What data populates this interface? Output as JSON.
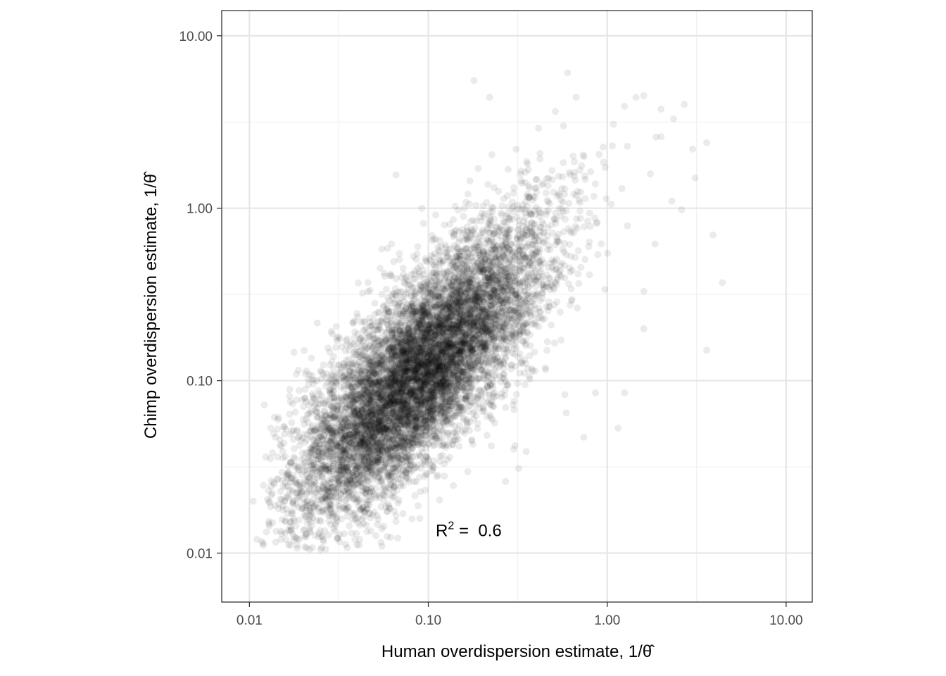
{
  "colors": {
    "point": "#000000",
    "grid_major": "#e6e6e6",
    "grid_minor": "#f0f0f0",
    "panel_border": "#333333",
    "tick_text": "#4d4d4d"
  },
  "chart_data": {
    "type": "scatter",
    "title": "",
    "xlabel": "Human overdispersion estimate, 1/θ̂",
    "ylabel": "Chimp overdispersion estimate, 1/θ̂",
    "x_scale": "log10",
    "y_scale": "log10",
    "xlim": [
      0.007,
      14
    ],
    "ylim": [
      0.0052,
      14
    ],
    "x_ticks": [
      0.01,
      0.1,
      1,
      10
    ],
    "x_tick_labels": [
      "0.01",
      "0.10",
      "1.00",
      "10.00"
    ],
    "y_ticks": [
      0.01,
      0.1,
      1,
      10
    ],
    "y_tick_labels": [
      "0.01",
      "0.10",
      "1.00",
      "10.00"
    ],
    "grid": true,
    "point_alpha": 0.08,
    "annotation": {
      "prefix": "R",
      "superscript": "2",
      "suffix": " =  0.6",
      "x": 0.11,
      "y": 0.0135
    },
    "cloud": {
      "n_points": 9000,
      "center_log10_x": -1.05,
      "center_log10_y": -0.95,
      "sd_log10_x": 0.34,
      "sd_log10_y": 0.42,
      "correlation": 0.77,
      "x_min": 0.0115,
      "y_min": 0.0105
    },
    "points": [
      [
        0.6,
        6.1
      ],
      [
        0.18,
        5.5
      ],
      [
        0.22,
        4.4
      ],
      [
        0.67,
        4.4
      ],
      [
        1.6,
        4.5
      ],
      [
        2.7,
        4.0
      ],
      [
        1.45,
        4.4
      ],
      [
        1.25,
        3.9
      ],
      [
        2.35,
        3.3
      ],
      [
        0.57,
        3.0
      ],
      [
        3.0,
        2.2
      ],
      [
        3.6,
        2.4
      ],
      [
        2.0,
        2.6
      ],
      [
        3.1,
        1.5
      ],
      [
        3.9,
        0.7
      ],
      [
        4.4,
        0.37
      ],
      [
        3.6,
        0.15
      ],
      [
        2.6,
        0.98
      ],
      [
        2.3,
        1.1
      ],
      [
        1.85,
        0.62
      ],
      [
        1.15,
        0.053
      ],
      [
        1.25,
        0.085
      ],
      [
        0.74,
        0.047
      ],
      [
        0.58,
        0.083
      ],
      [
        0.59,
        0.065
      ],
      [
        0.32,
        0.031
      ],
      [
        0.305,
        0.042
      ],
      [
        0.3,
        0.04
      ],
      [
        0.066,
        1.56
      ],
      [
        0.31,
        2.2
      ],
      [
        0.19,
        1.7
      ],
      [
        0.092,
        1.0
      ],
      [
        0.055,
        0.58
      ],
      [
        0.046,
        0.37
      ],
      [
        0.064,
        0.49
      ],
      [
        0.86,
        0.085
      ],
      [
        0.27,
        0.026
      ],
      [
        1.6,
        0.2
      ],
      [
        1.6,
        0.33
      ],
      [
        0.12,
        0.12
      ],
      [
        0.0105,
        0.02
      ],
      [
        0.011,
        0.012
      ],
      [
        0.015,
        0.012
      ],
      [
        0.019,
        0.012
      ],
      [
        0.025,
        0.0105
      ]
    ]
  }
}
